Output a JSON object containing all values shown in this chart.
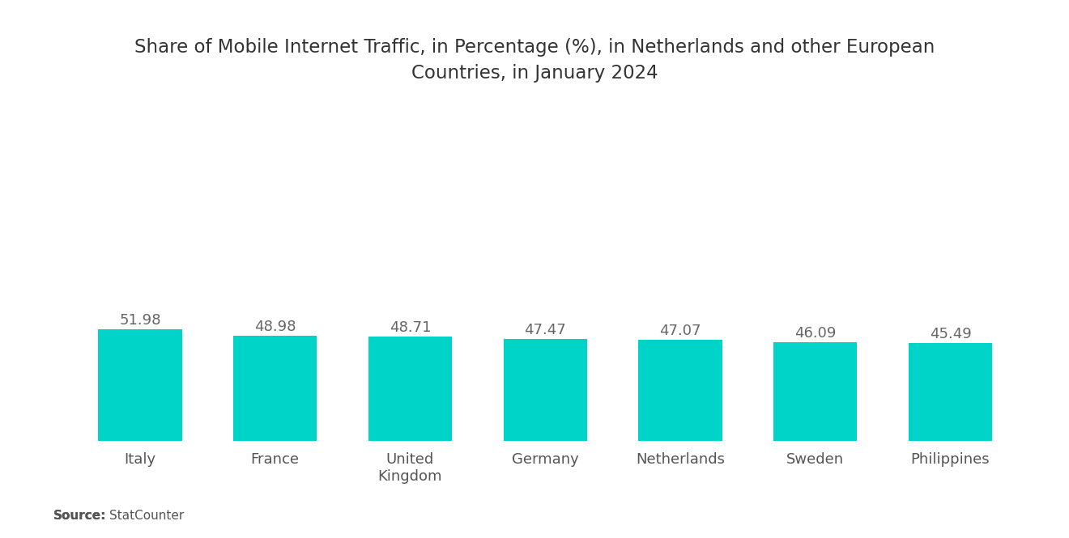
{
  "title_line1": "Share of Mobile Internet Traffic, in Percentage (%), in Netherlands and other European",
  "title_line2": "Countries, in January 2024",
  "categories": [
    "Italy",
    "France",
    "United\nKingdom",
    "Germany",
    "Netherlands",
    "Sweden",
    "Philippines"
  ],
  "values": [
    51.98,
    48.98,
    48.71,
    47.47,
    47.07,
    46.09,
    45.49
  ],
  "bar_color": "#00D4C8",
  "background_color": "#ffffff",
  "title_fontsize": 16.5,
  "label_fontsize": 13,
  "value_fontsize": 13,
  "source_bold": "Source:",
  "source_normal": "  StatCounter",
  "source_fontsize": 11,
  "ylim": [
    0,
    110
  ],
  "bar_width": 0.62
}
